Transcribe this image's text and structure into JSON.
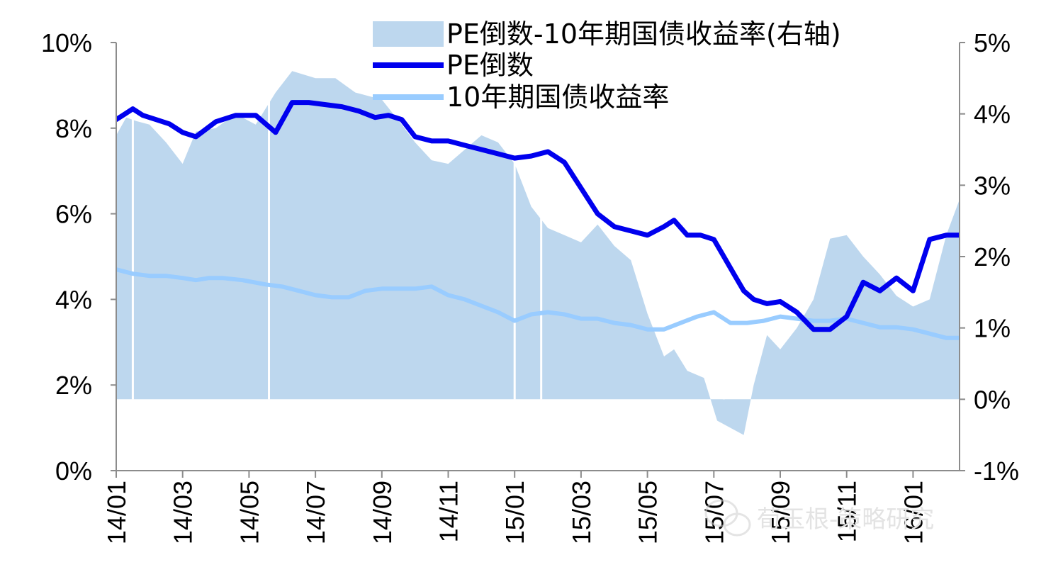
{
  "chart_data": {
    "type": "area+line",
    "title": "",
    "left_axis": {
      "range": [
        0,
        10
      ],
      "ticks": [
        0,
        2,
        4,
        6,
        8,
        10
      ],
      "tick_labels": [
        "0%",
        "2%",
        "4%",
        "6%",
        "8%",
        "10%"
      ]
    },
    "right_axis": {
      "range": [
        -1,
        5
      ],
      "ticks": [
        -1,
        0,
        1,
        2,
        3,
        4,
        5
      ],
      "tick_labels": [
        "-1%",
        "0%",
        "1%",
        "2%",
        "3%",
        "4%",
        "5%"
      ]
    },
    "x_ticks": [
      "14/01",
      "14/03",
      "14/05",
      "14/07",
      "14/09",
      "14/11",
      "15/01",
      "15/03",
      "15/05",
      "15/07",
      "15/09",
      "15/11",
      "16/01"
    ],
    "x_range": [
      0,
      25.4
    ],
    "legend": [
      "PE倒数-10年期国债收益率(右轴)",
      "PE倒数",
      "10年期国债收益率"
    ],
    "series": [
      {
        "name": "PE倒数-10年期国债收益率(右轴)",
        "axis": "right",
        "kind": "area",
        "color": "#bdd7ee",
        "x": [
          0,
          0.3,
          0.6,
          1.0,
          1.5,
          2.0,
          2.4,
          3.0,
          3.6,
          4.2,
          4.8,
          5.3,
          6.0,
          6.6,
          7.2,
          8.0,
          8.6,
          9.0,
          9.5,
          10.0,
          10.5,
          11.0,
          11.5,
          12.0,
          12.5,
          13.0,
          13.5,
          14.0,
          14.5,
          15.0,
          15.5,
          16.0,
          16.5,
          16.8,
          17.2,
          17.7,
          18.1,
          18.5,
          18.9,
          19.2,
          19.6,
          20.0,
          20.5,
          21.0,
          21.5,
          22.0,
          22.5,
          23.0,
          23.5,
          24.0,
          24.5,
          25.0,
          25.4
        ],
        "values": [
          3.7,
          3.95,
          3.9,
          3.85,
          3.6,
          3.3,
          3.75,
          3.8,
          4.0,
          3.85,
          4.3,
          4.6,
          4.5,
          4.5,
          4.3,
          4.2,
          3.85,
          3.6,
          3.35,
          3.3,
          3.5,
          3.7,
          3.6,
          3.3,
          2.7,
          2.4,
          2.3,
          2.2,
          2.45,
          2.15,
          1.95,
          1.2,
          0.6,
          0.7,
          0.4,
          0.3,
          -0.3,
          -0.4,
          -0.5,
          0.2,
          0.9,
          0.7,
          1.0,
          1.4,
          2.25,
          2.3,
          2.0,
          1.75,
          1.45,
          1.3,
          1.4,
          2.3,
          2.8
        ]
      },
      {
        "name": "PE倒数",
        "axis": "left",
        "kind": "line",
        "color": "#0000ee",
        "x": [
          0,
          0.2,
          0.5,
          0.8,
          1.2,
          1.6,
          2.0,
          2.4,
          3.0,
          3.6,
          4.2,
          4.8,
          5.3,
          5.8,
          6.3,
          6.8,
          7.3,
          7.8,
          8.2,
          8.6,
          9.0,
          9.5,
          10.0,
          10.5,
          11.0,
          11.5,
          12.0,
          12.5,
          13.0,
          13.5,
          14.0,
          14.5,
          15.0,
          15.5,
          16.0,
          16.5,
          16.8,
          17.2,
          17.6,
          18.0,
          18.3,
          18.6,
          18.9,
          19.2,
          19.6,
          20.0,
          20.5,
          21.0,
          21.5,
          22.0,
          22.5,
          23.0,
          23.5,
          24.0,
          24.5,
          25.0,
          25.4
        ],
        "values": [
          8.2,
          8.3,
          8.45,
          8.3,
          8.2,
          8.1,
          7.9,
          7.8,
          8.15,
          8.3,
          8.3,
          7.9,
          8.6,
          8.6,
          8.55,
          8.5,
          8.4,
          8.25,
          8.3,
          8.2,
          7.8,
          7.7,
          7.7,
          7.6,
          7.5,
          7.4,
          7.3,
          7.35,
          7.45,
          7.2,
          6.6,
          6.0,
          5.7,
          5.6,
          5.5,
          5.7,
          5.85,
          5.5,
          5.5,
          5.4,
          5.0,
          4.6,
          4.2,
          4.0,
          3.9,
          3.95,
          3.7,
          3.3,
          3.3,
          3.6,
          4.4,
          4.2,
          4.5,
          4.2,
          5.4,
          5.5,
          5.5
        ]
      },
      {
        "name": "10年期国债收益率",
        "axis": "left",
        "kind": "line",
        "color": "#99ccff",
        "x": [
          0,
          0.5,
          1.0,
          1.5,
          2.0,
          2.4,
          2.8,
          3.2,
          3.8,
          4.5,
          5.0,
          5.5,
          6.0,
          6.5,
          7.0,
          7.5,
          8.0,
          8.5,
          9.0,
          9.5,
          10.0,
          10.5,
          11.0,
          11.5,
          12.0,
          12.5,
          13.0,
          13.5,
          14.0,
          14.5,
          15.0,
          15.5,
          16.0,
          16.5,
          17.0,
          17.5,
          18.0,
          18.5,
          19.0,
          19.5,
          20.0,
          20.5,
          21.0,
          21.5,
          22.0,
          22.5,
          23.0,
          23.5,
          24.0,
          24.5,
          25.0,
          25.4
        ],
        "values": [
          4.7,
          4.6,
          4.55,
          4.55,
          4.5,
          4.45,
          4.5,
          4.5,
          4.45,
          4.35,
          4.3,
          4.2,
          4.1,
          4.05,
          4.05,
          4.2,
          4.25,
          4.25,
          4.25,
          4.3,
          4.1,
          4.0,
          3.85,
          3.7,
          3.5,
          3.65,
          3.7,
          3.65,
          3.55,
          3.55,
          3.45,
          3.4,
          3.3,
          3.3,
          3.45,
          3.6,
          3.7,
          3.45,
          3.45,
          3.5,
          3.6,
          3.55,
          3.5,
          3.5,
          3.55,
          3.45,
          3.35,
          3.35,
          3.3,
          3.2,
          3.1,
          3.1
        ]
      }
    ]
  },
  "watermark": {
    "text": "荀玉根-策略研究",
    "icon": "wechat-icon"
  }
}
